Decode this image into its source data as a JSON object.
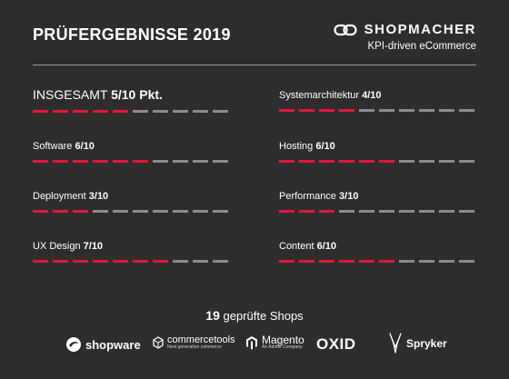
{
  "title": "PRÜFERGEBNISSE 2019",
  "brand": {
    "name": "SHOPMACHER",
    "tagline": "KPI-driven eCommerce",
    "logo_icon": "chain-link-icon"
  },
  "scale_max": 10,
  "colors": {
    "accent": "#e2173a",
    "inactive": "#8c8a8b",
    "background": "#2e2c2d"
  },
  "metrics": [
    {
      "label": "INSGESAMT",
      "value_text": "5/10 Pkt.",
      "score": 5
    },
    {
      "label": "Software",
      "value_text": "6/10",
      "score": 6
    },
    {
      "label": "Deployment",
      "value_text": "3/10",
      "score": 3
    },
    {
      "label": "UX Design",
      "value_text": "7/10",
      "score": 7
    },
    {
      "label": "Systemarchitektur",
      "value_text": "4/10",
      "score": 4
    },
    {
      "label": "Hosting",
      "value_text": "6/10",
      "score": 6
    },
    {
      "label": "Performance",
      "value_text": "3/10",
      "score": 3
    },
    {
      "label": "Content",
      "value_text": "6/10",
      "score": 6
    }
  ],
  "summary": {
    "count": "19",
    "text": "geprüfte Shops"
  },
  "logos": {
    "shopware": {
      "name": "shopware",
      "icon": "shopware-icon"
    },
    "commercetools": {
      "name": "commercetools",
      "sub": "Next generation commerce",
      "icon": "commercetools-icon"
    },
    "magento": {
      "name": "Magento",
      "sub": "An Adobe Company",
      "icon": "magento-icon"
    },
    "oxid": {
      "name": "OXID"
    },
    "spryker": {
      "name": "Spryker",
      "icon": "spryker-icon"
    }
  }
}
